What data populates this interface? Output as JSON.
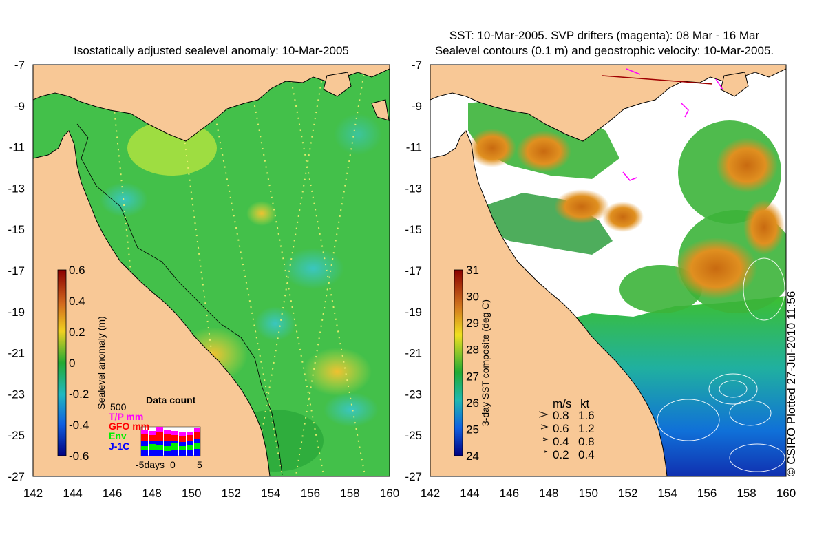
{
  "left_panel": {
    "title": "Isostatically adjusted sealevel anomaly: 10-Mar-2005",
    "colorbar": {
      "label": "Sealevel anomaly (m)",
      "ticks": [
        "0.6",
        "0.4",
        "0.2",
        "0",
        "-0.2",
        "-0.4",
        "-0.6"
      ]
    },
    "data_count": {
      "title": "Data count",
      "scale_label": "500",
      "legend": [
        {
          "label": "T/P mm",
          "color": "#ff00ff"
        },
        {
          "label": "GFO mm",
          "color": "#ff0000"
        },
        {
          "label": "Env",
          "color": "#00ee00"
        },
        {
          "label": "J-1C",
          "color": "#0000ff"
        }
      ],
      "x_ticks": [
        "-5days",
        "0",
        "5"
      ]
    }
  },
  "right_panel": {
    "title_line1": "SST: 10-Mar-2005. SVP drifters (magenta): 08 Mar - 16 Mar",
    "title_line2": "Sealevel contours (0.1 m) and geostrophic velocity: 10-Mar-2005.",
    "colorbar": {
      "label": "3-day SST composite (deg C)",
      "ticks": [
        "31",
        "30",
        "29",
        "28",
        "27",
        "26",
        "25",
        "24"
      ]
    },
    "velocity_legend": {
      "header_ms": "m/s",
      "header_kt": "kt",
      "rows": [
        {
          "ms": "0.8",
          "kt": "1.6"
        },
        {
          "ms": "0.6",
          "kt": "1.2"
        },
        {
          "ms": "0.4",
          "kt": "0.8"
        },
        {
          "ms": "0.2",
          "kt": "0.4"
        }
      ]
    }
  },
  "axes": {
    "y_ticks": [
      "-7",
      "-9",
      "-11",
      "-13",
      "-15",
      "-17",
      "-19",
      "-21",
      "-23",
      "-25",
      "-27"
    ],
    "x_ticks": [
      "142",
      "144",
      "146",
      "148",
      "150",
      "152",
      "154",
      "156",
      "158",
      "160"
    ]
  },
  "copyright": "© CSIRO Plotted 27-Jul-2010 11:56",
  "colors": {
    "land": "#f8c896",
    "sea_mid": "#2fbf3a",
    "sst_cloud": "#ffffff"
  }
}
